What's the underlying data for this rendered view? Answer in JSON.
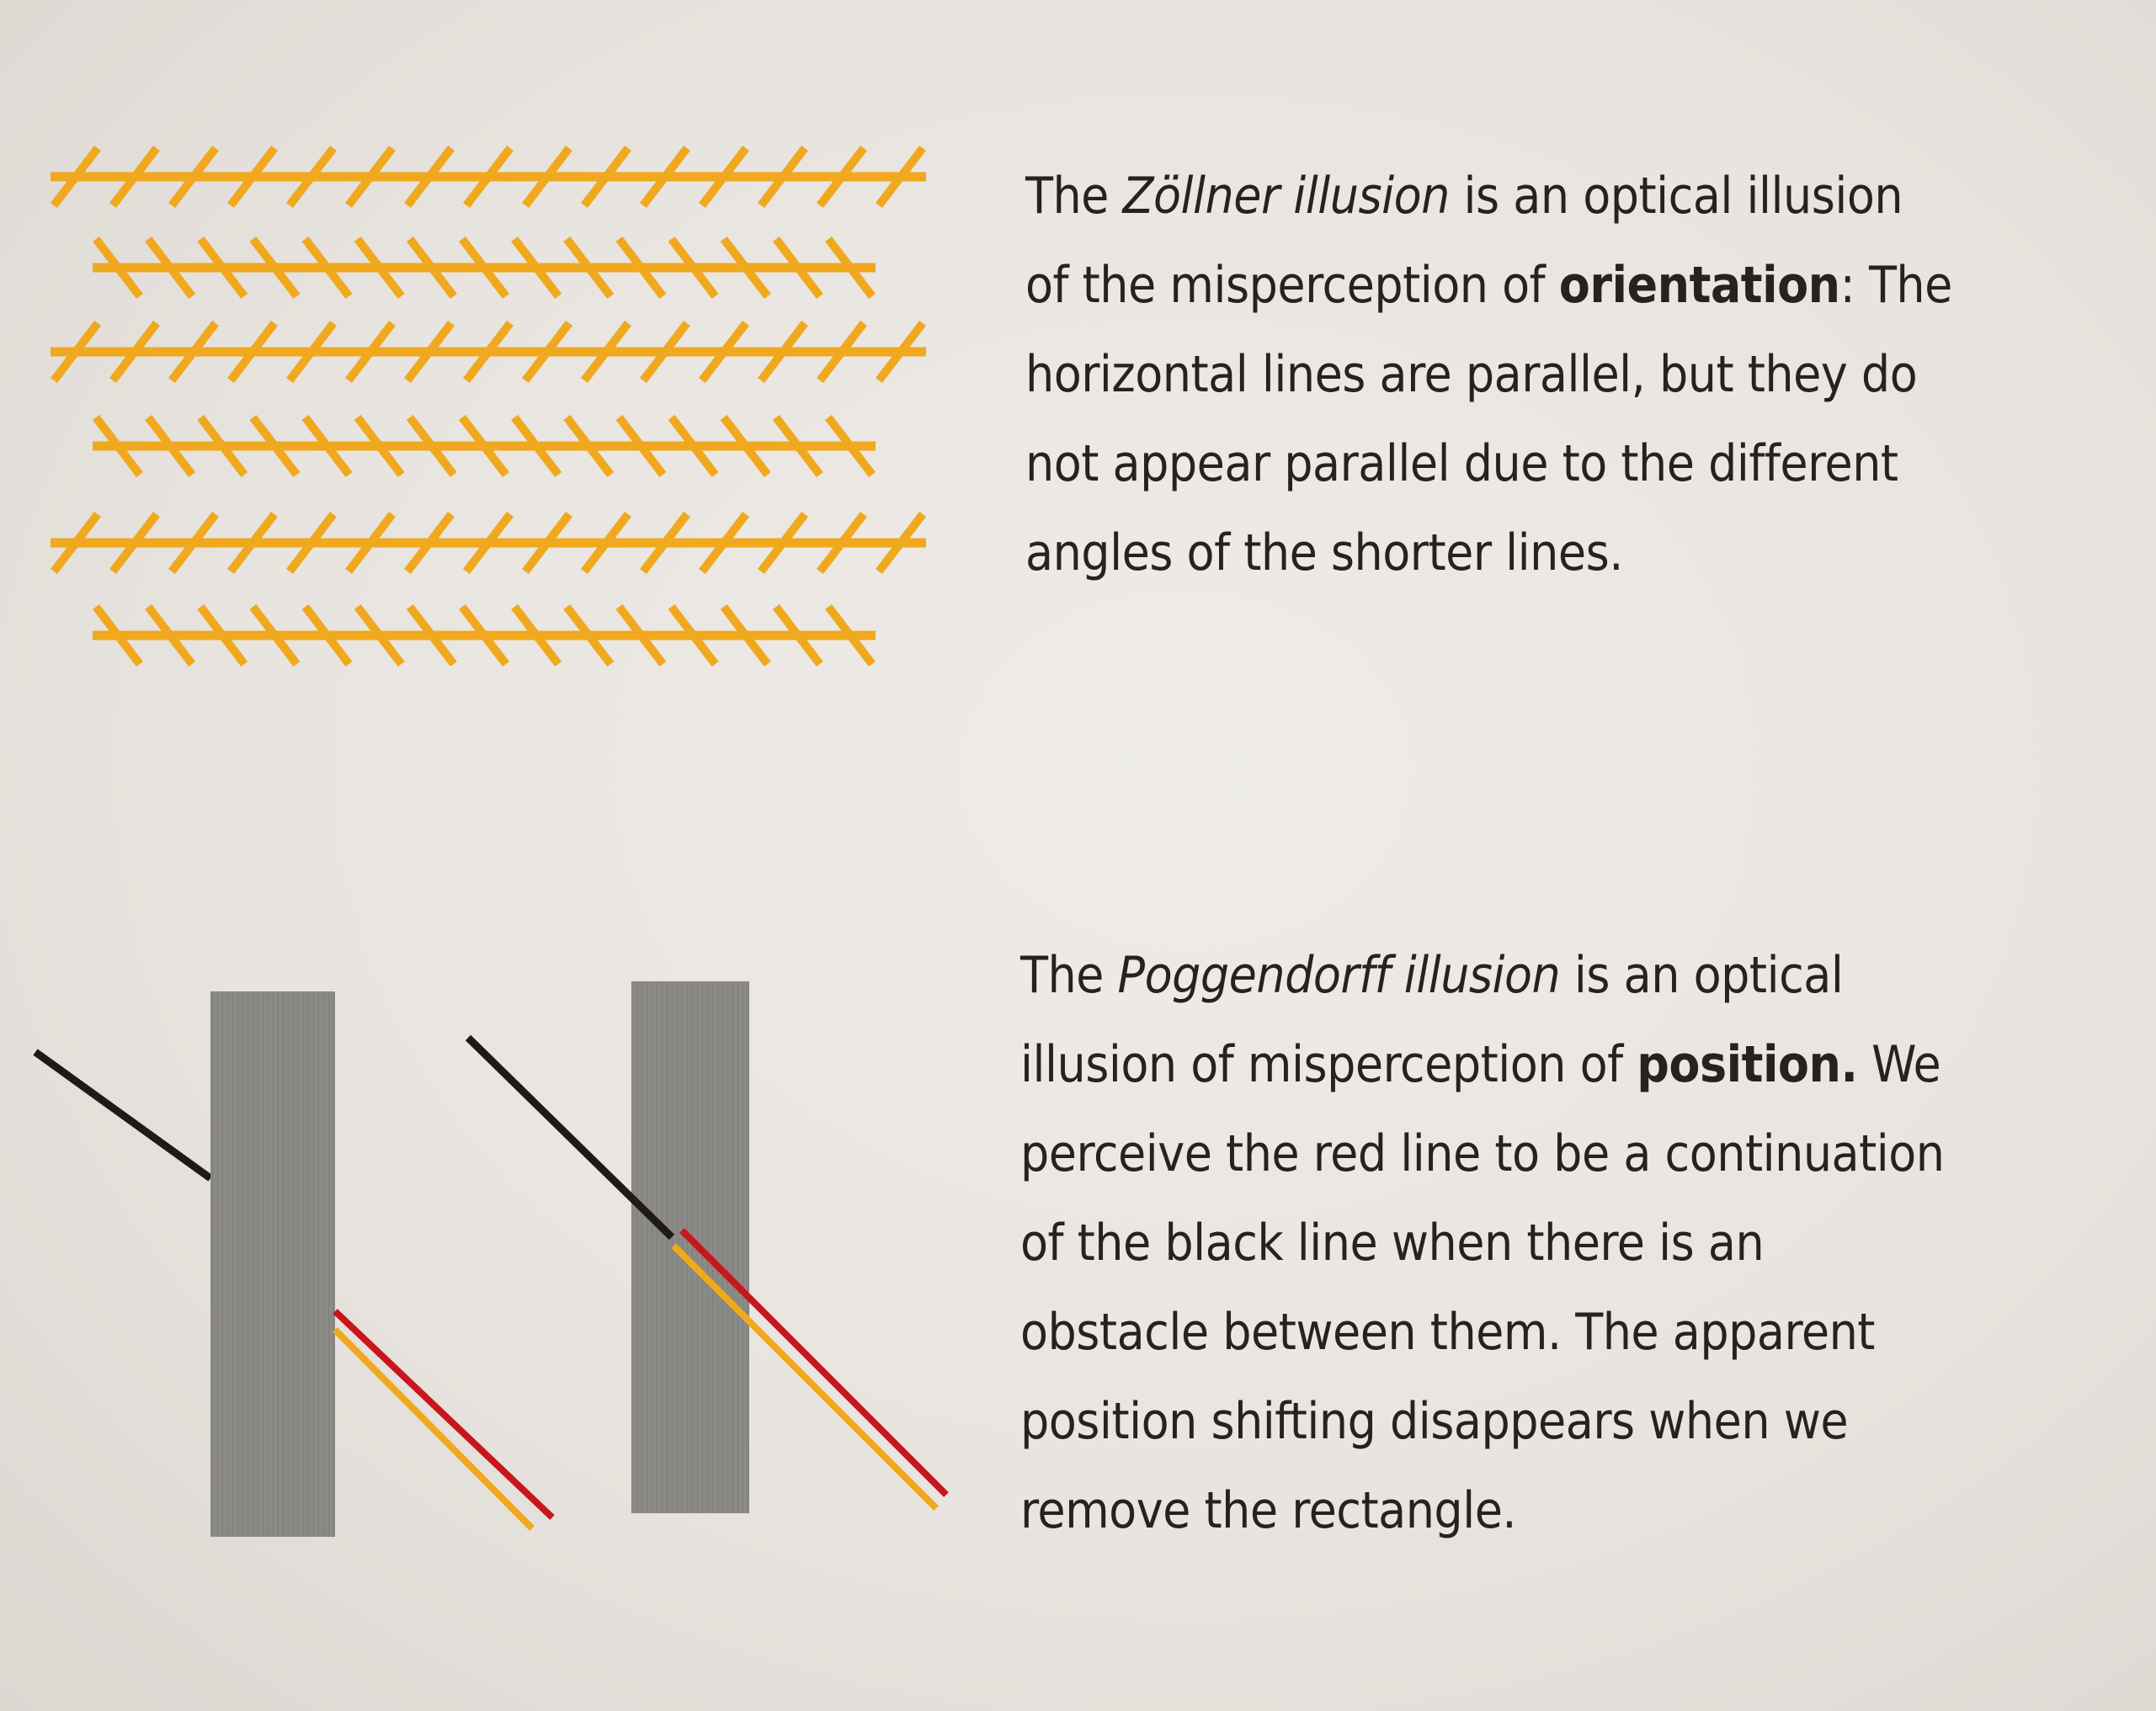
{
  "zollner": {
    "line1": {
      "pre": "The ",
      "term": "Zöllner illusion",
      "post": " is an optical illusion"
    },
    "line2": {
      "pre": "of the misperception of ",
      "bold": "orientation",
      "post": ": The"
    },
    "line3": "horizontal lines are parallel, but they do",
    "line4": "not appear parallel due to the different",
    "line5": "angles of the shorter lines."
  },
  "poggendorff": {
    "line1": {
      "pre": "The ",
      "term": "Poggendorff illusion",
      "post": " is an optical"
    },
    "line2": {
      "pre": "illusion of misperception of ",
      "bold": "position.",
      "post": " We"
    },
    "line3": "perceive the red line to be a continuation",
    "line4": "of the black line when there is an",
    "line5": "obstacle between them. The apparent",
    "line6": "position shifting disappears when we",
    "line7": "remove the rectangle."
  },
  "colors": {
    "background": "#ebe7e3",
    "gold": "#f0a81e",
    "red": "#c9161c",
    "black": "#1d1a18",
    "rectangle": "#8a8986",
    "text": "#262220"
  }
}
